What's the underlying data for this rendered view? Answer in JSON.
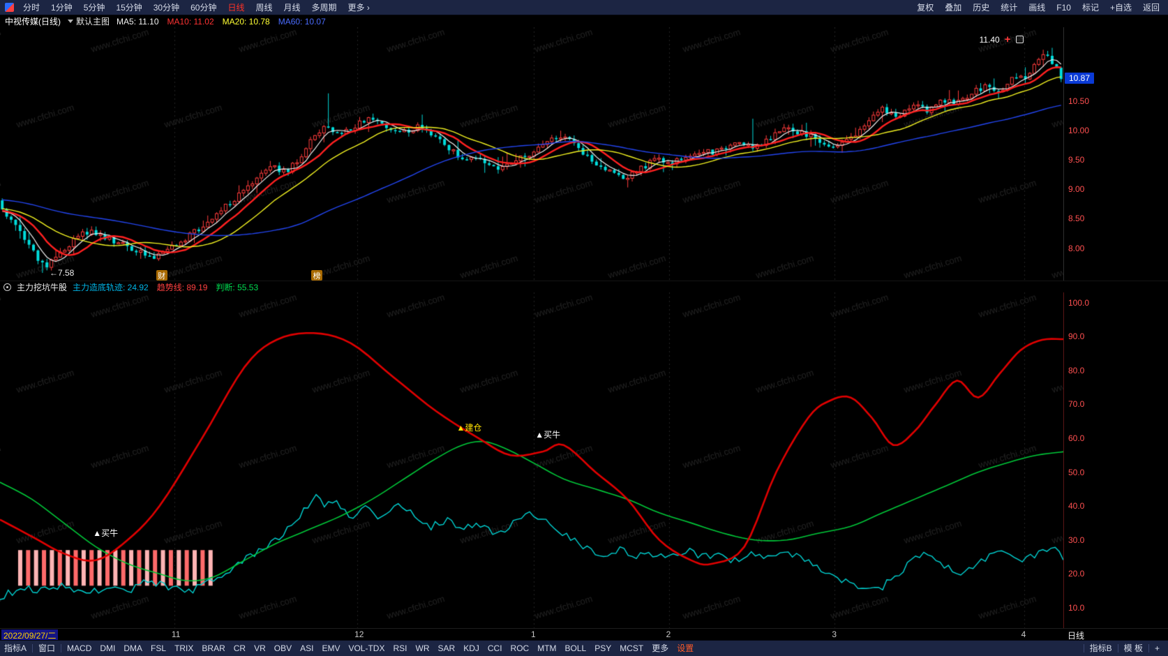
{
  "app": {
    "watermark": "www.cfchi.com",
    "colors": {
      "toolbar_bg": "#1c2543",
      "active_period": "#ff3226",
      "current_price_bg": "#0a3ad6",
      "axis_label": "#ff5050",
      "candle_up": "#ff3b3b",
      "candle_down": "#00dcdc"
    }
  },
  "topbar": {
    "periods": [
      {
        "label": "分时"
      },
      {
        "label": "1分钟"
      },
      {
        "label": "5分钟"
      },
      {
        "label": "15分钟"
      },
      {
        "label": "30分钟"
      },
      {
        "label": "60分钟"
      },
      {
        "label": "日线",
        "active": true
      },
      {
        "label": "周线"
      },
      {
        "label": "月线"
      },
      {
        "label": "多周期"
      },
      {
        "label": "更多 ›"
      }
    ],
    "tools": [
      "复权",
      "叠加",
      "历史",
      "统计",
      "画线",
      "F10",
      "标记",
      "+自选",
      "返回"
    ]
  },
  "infobar": {
    "symbol": "中视传媒(日线)",
    "chart_style": "默认主图",
    "ma_values": [
      {
        "label": "MA5: 11.10",
        "color": "#f2f2f2"
      },
      {
        "label": "MA10: 11.02",
        "color": "#ff3232"
      },
      {
        "label": "MA20: 10.78",
        "color": "#ffff33"
      },
      {
        "label": "MA60: 10.07",
        "color": "#4a6cff"
      }
    ]
  },
  "sub_header": {
    "name": "主力挖坑牛股",
    "legend": [
      {
        "label": "主力造底轨迹",
        "value": "24.92",
        "color": "#00b4e6"
      },
      {
        "label": "趋势线",
        "value": "89.19",
        "color": "#ff4040"
      },
      {
        "label": "判断",
        "value": "55.53",
        "color": "#00dc50"
      }
    ]
  },
  "datebar": {
    "date": "2022/09/27/二",
    "months": [
      {
        "label": "11",
        "x": 0.164
      },
      {
        "label": "12",
        "x": 0.336
      },
      {
        "label": "1",
        "x": 0.502
      },
      {
        "label": "2",
        "x": 0.629
      },
      {
        "label": "3",
        "x": 0.785
      },
      {
        "label": "4",
        "x": 0.963
      }
    ],
    "period": "日线"
  },
  "bottombar": {
    "left": [
      "指标A",
      "窗口"
    ],
    "indicators": [
      "MACD",
      "DMI",
      "DMA",
      "FSL",
      "TRIX",
      "BRAR",
      "CR",
      "VR",
      "OBV",
      "ASI",
      "EMV",
      "VOL-TDX",
      "RSI",
      "WR",
      "SAR",
      "KDJ",
      "CCI",
      "ROC",
      "MTM",
      "BOLL",
      "PSY",
      "MCST",
      "更多"
    ],
    "settings": "设置",
    "right": [
      "指标B",
      "模 板",
      "+"
    ]
  },
  "chart_data": {
    "type": "candlestick",
    "main": {
      "title": "中视传媒(日线)",
      "ylim": [
        7.45,
        11.75
      ],
      "num_candles": 238,
      "last_price": 10.87,
      "axis_labels": [
        10.5,
        10.0,
        9.5,
        9.0,
        8.5,
        8.0
      ],
      "low_marker": {
        "value": 7.58,
        "label": "←7.58",
        "x": 0.04
      },
      "high_marker": {
        "value": 11.4,
        "label": "11.40",
        "x": 0.962
      },
      "events": [
        {
          "label": "财",
          "x": 0.152
        },
        {
          "label": "榜",
          "x": 0.298
        }
      ],
      "ma": [
        {
          "period": 5,
          "color": "#f0f0f0",
          "width": 1.2
        },
        {
          "period": 10,
          "color": "#ff2020",
          "width": 2.4
        },
        {
          "period": 20,
          "color": "#f0f020",
          "width": 1.4
        },
        {
          "period": 60,
          "color": "#2244ee",
          "width": 1.4
        }
      ],
      "close_waypoints": [
        [
          0,
          8.62
        ],
        [
          0.01,
          8.42
        ],
        [
          0.022,
          8.12
        ],
        [
          0.034,
          7.82
        ],
        [
          0.042,
          7.72
        ],
        [
          0.052,
          7.88
        ],
        [
          0.065,
          8.1
        ],
        [
          0.08,
          8.28
        ],
        [
          0.095,
          8.2
        ],
        [
          0.11,
          8.1
        ],
        [
          0.125,
          7.98
        ],
        [
          0.14,
          7.82
        ],
        [
          0.15,
          7.9
        ],
        [
          0.165,
          8.05
        ],
        [
          0.18,
          8.25
        ],
        [
          0.2,
          8.55
        ],
        [
          0.22,
          8.85
        ],
        [
          0.24,
          9.15
        ],
        [
          0.255,
          9.38
        ],
        [
          0.268,
          9.3
        ],
        [
          0.282,
          9.55
        ],
        [
          0.295,
          9.9
        ],
        [
          0.305,
          10.12
        ],
        [
          0.315,
          9.95
        ],
        [
          0.33,
          10.05
        ],
        [
          0.345,
          10.18
        ],
        [
          0.36,
          10.08
        ],
        [
          0.375,
          9.93
        ],
        [
          0.39,
          10.06
        ],
        [
          0.405,
          9.96
        ],
        [
          0.42,
          9.72
        ],
        [
          0.435,
          9.52
        ],
        [
          0.45,
          9.58
        ],
        [
          0.465,
          9.33
        ],
        [
          0.48,
          9.46
        ],
        [
          0.5,
          9.62
        ],
        [
          0.515,
          9.82
        ],
        [
          0.53,
          9.94
        ],
        [
          0.545,
          9.65
        ],
        [
          0.56,
          9.42
        ],
        [
          0.575,
          9.28
        ],
        [
          0.59,
          9.18
        ],
        [
          0.605,
          9.38
        ],
        [
          0.62,
          9.52
        ],
        [
          0.635,
          9.46
        ],
        [
          0.65,
          9.56
        ],
        [
          0.665,
          9.62
        ],
        [
          0.68,
          9.66
        ],
        [
          0.695,
          9.78
        ],
        [
          0.71,
          9.72
        ],
        [
          0.725,
          9.86
        ],
        [
          0.74,
          10.02
        ],
        [
          0.755,
          9.96
        ],
        [
          0.77,
          9.86
        ],
        [
          0.785,
          9.7
        ],
        [
          0.8,
          9.84
        ],
        [
          0.815,
          10.12
        ],
        [
          0.83,
          10.36
        ],
        [
          0.845,
          10.22
        ],
        [
          0.86,
          10.46
        ],
        [
          0.875,
          10.32
        ],
        [
          0.89,
          10.52
        ],
        [
          0.9,
          10.46
        ],
        [
          0.915,
          10.62
        ],
        [
          0.93,
          10.76
        ],
        [
          0.945,
          10.66
        ],
        [
          0.955,
          10.92
        ],
        [
          0.965,
          10.85
        ],
        [
          0.975,
          11.12
        ],
        [
          0.985,
          11.3
        ],
        [
          0.993,
          11.12
        ],
        [
          1,
          10.9
        ]
      ]
    },
    "sub": {
      "name": "主力挖坑牛股",
      "ylim": [
        4,
        103
      ],
      "axis_labels": [
        100.0,
        90.0,
        80.0,
        70.0,
        60.0,
        50.0,
        40.0,
        30.0,
        20.0,
        10.0
      ],
      "lines": {
        "trend_red": {
          "color": "#e00000",
          "width": 2.6,
          "end_value": 89.19,
          "waypoints": [
            [
              0,
              36
            ],
            [
              0.03,
              31
            ],
            [
              0.06,
              26
            ],
            [
              0.09,
              24
            ],
            [
              0.12,
              30
            ],
            [
              0.15,
              40
            ],
            [
              0.19,
              60
            ],
            [
              0.23,
              81
            ],
            [
              0.26,
              89
            ],
            [
              0.295,
              91
            ],
            [
              0.33,
              88
            ],
            [
              0.37,
              78
            ],
            [
              0.41,
              68
            ],
            [
              0.45,
              60
            ],
            [
              0.48,
              55
            ],
            [
              0.51,
              56
            ],
            [
              0.53,
              58
            ],
            [
              0.56,
              50
            ],
            [
              0.59,
              42
            ],
            [
              0.62,
              30
            ],
            [
              0.65,
              24
            ],
            [
              0.67,
              23
            ],
            [
              0.7,
              28
            ],
            [
              0.73,
              50
            ],
            [
              0.76,
              66
            ],
            [
              0.78,
              71
            ],
            [
              0.8,
              72
            ],
            [
              0.82,
              66
            ],
            [
              0.84,
              58
            ],
            [
              0.86,
              62
            ],
            [
              0.88,
              70
            ],
            [
              0.9,
              77
            ],
            [
              0.92,
              72
            ],
            [
              0.94,
              79
            ],
            [
              0.96,
              86
            ],
            [
              0.98,
              89
            ],
            [
              1,
              89.2
            ]
          ]
        },
        "judge_green": {
          "color": "#00c838",
          "width": 1.6,
          "end_value": 55.53,
          "waypoints": [
            [
              0,
              47
            ],
            [
              0.03,
              42
            ],
            [
              0.06,
              35
            ],
            [
              0.09,
              28
            ],
            [
              0.12,
              23
            ],
            [
              0.15,
              20
            ],
            [
              0.175,
              18
            ],
            [
              0.2,
              19
            ],
            [
              0.23,
              24
            ],
            [
              0.26,
              29
            ],
            [
              0.29,
              33
            ],
            [
              0.32,
              37
            ],
            [
              0.35,
              42
            ],
            [
              0.38,
              48
            ],
            [
              0.41,
              54
            ],
            [
              0.435,
              58
            ],
            [
              0.455,
              59
            ],
            [
              0.475,
              57
            ],
            [
              0.5,
              53
            ],
            [
              0.53,
              48
            ],
            [
              0.56,
              45
            ],
            [
              0.59,
              42
            ],
            [
              0.62,
              38
            ],
            [
              0.65,
              35
            ],
            [
              0.68,
              32
            ],
            [
              0.71,
              30
            ],
            [
              0.74,
              30
            ],
            [
              0.77,
              32
            ],
            [
              0.8,
              34
            ],
            [
              0.83,
              38
            ],
            [
              0.86,
              42
            ],
            [
              0.89,
              46
            ],
            [
              0.92,
              50
            ],
            [
              0.95,
              53
            ],
            [
              0.975,
              55
            ],
            [
              1,
              56
            ]
          ]
        },
        "track_cyan": {
          "color": "#00d2d2",
          "width": 1.4,
          "end_value": 24.92,
          "waypoints": [
            [
              0,
              13
            ],
            [
              0.02,
              16
            ],
            [
              0.04,
              15
            ],
            [
              0.06,
              17
            ],
            [
              0.08,
              14
            ],
            [
              0.1,
              16
            ],
            [
              0.12,
              15
            ],
            [
              0.14,
              18
            ],
            [
              0.16,
              16
            ],
            [
              0.18,
              15
            ],
            [
              0.2,
              18
            ],
            [
              0.22,
              22
            ],
            [
              0.24,
              26
            ],
            [
              0.26,
              30
            ],
            [
              0.28,
              36
            ],
            [
              0.295,
              43
            ],
            [
              0.305,
              40
            ],
            [
              0.315,
              42
            ],
            [
              0.33,
              37
            ],
            [
              0.345,
              40
            ],
            [
              0.36,
              36
            ],
            [
              0.375,
              41
            ],
            [
              0.39,
              37
            ],
            [
              0.405,
              34
            ],
            [
              0.42,
              36
            ],
            [
              0.435,
              33
            ],
            [
              0.45,
              35
            ],
            [
              0.465,
              32
            ],
            [
              0.48,
              34
            ],
            [
              0.495,
              38
            ],
            [
              0.51,
              36
            ],
            [
              0.525,
              33
            ],
            [
              0.54,
              30
            ],
            [
              0.555,
              27
            ],
            [
              0.57,
              26
            ],
            [
              0.585,
              27
            ],
            [
              0.6,
              25
            ],
            [
              0.615,
              26
            ],
            [
              0.63,
              25
            ],
            [
              0.645,
              27
            ],
            [
              0.66,
              25
            ],
            [
              0.675,
              26
            ],
            [
              0.69,
              24
            ],
            [
              0.705,
              26
            ],
            [
              0.72,
              25
            ],
            [
              0.735,
              27
            ],
            [
              0.75,
              25
            ],
            [
              0.765,
              23
            ],
            [
              0.78,
              20
            ],
            [
              0.795,
              18
            ],
            [
              0.81,
              16
            ],
            [
              0.825,
              15
            ],
            [
              0.84,
              19
            ],
            [
              0.855,
              23
            ],
            [
              0.87,
              26
            ],
            [
              0.885,
              23
            ],
            [
              0.9,
              20
            ],
            [
              0.915,
              22
            ],
            [
              0.93,
              25
            ],
            [
              0.945,
              27
            ],
            [
              0.96,
              24
            ],
            [
              0.975,
              26
            ],
            [
              0.99,
              28
            ],
            [
              1,
              25
            ]
          ]
        }
      },
      "histogram": {
        "x0": 0.019,
        "x1": 0.198,
        "bars": 25,
        "v_top": 27,
        "v_bottom": 16.5,
        "color_a": "#ffb4b4",
        "color_b": "#ff6a6a"
      },
      "markers": [
        {
          "label": "▲买牛",
          "x": 0.096,
          "v": 31,
          "color": "#ffffff"
        },
        {
          "label": "▲建仓",
          "x": 0.438,
          "v": 62,
          "color": "#ffe000"
        },
        {
          "label": "▲买牛",
          "x": 0.512,
          "v": 60,
          "color": "#ffffff"
        }
      ]
    }
  }
}
